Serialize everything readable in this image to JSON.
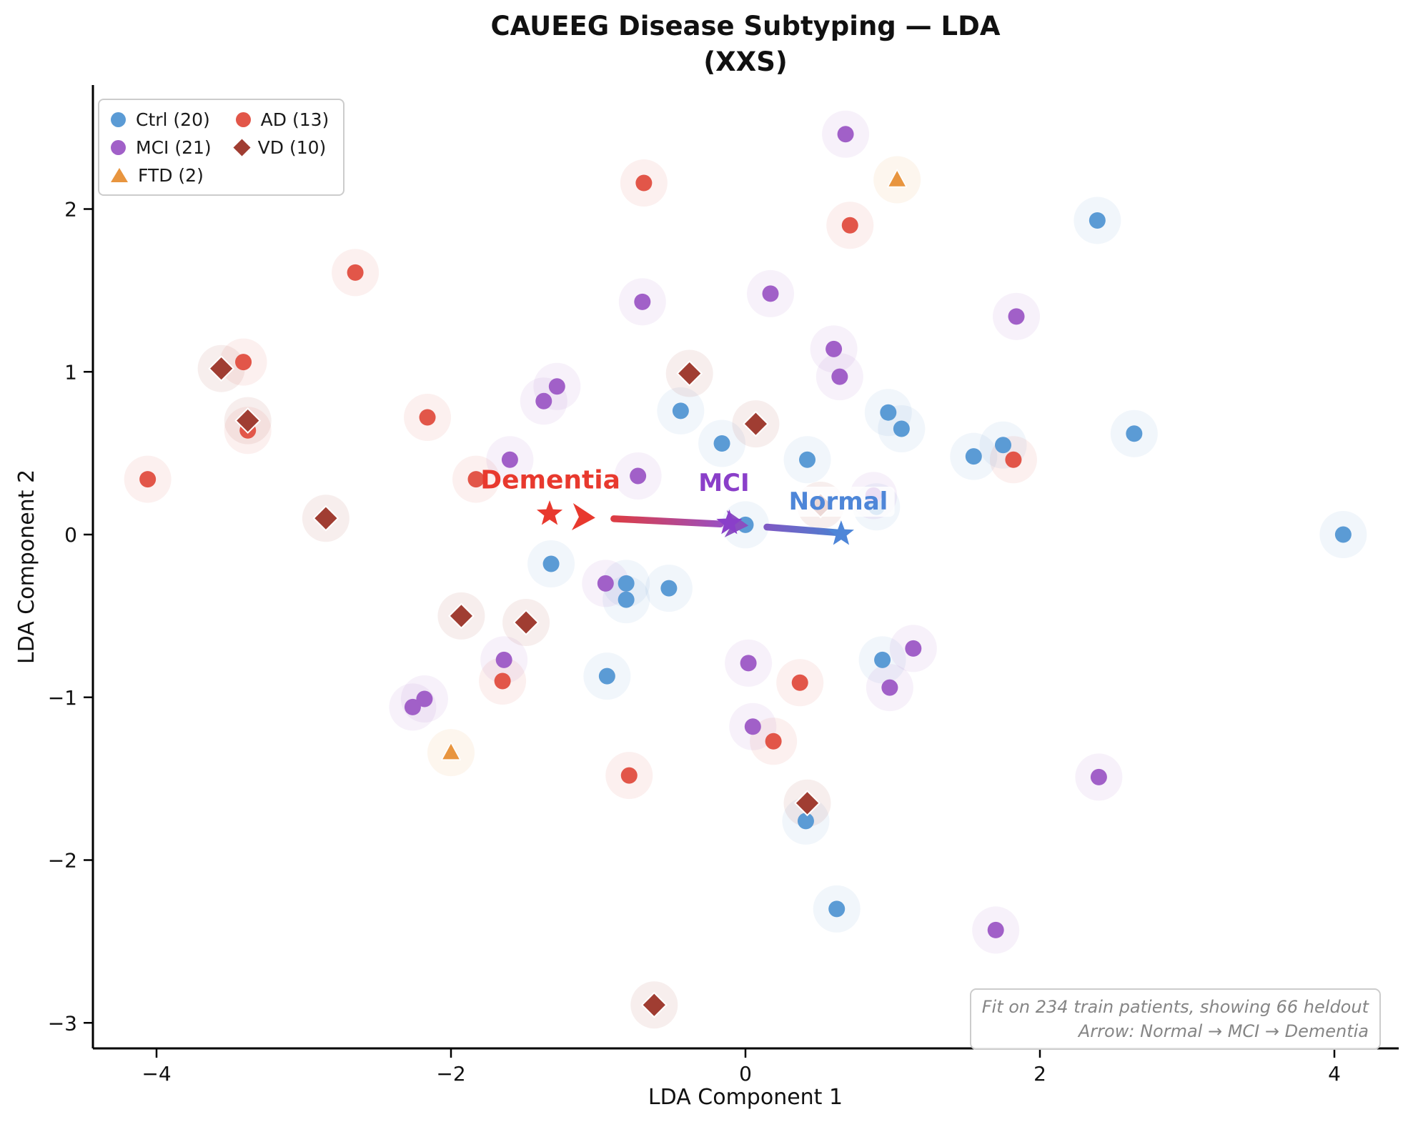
{
  "title": {
    "line1": "CAUEEG Disease Subtyping — LDA",
    "line2": "(XXS)"
  },
  "axes": {
    "xlabel": "LDA Component 1",
    "ylabel": "LDA Component 2",
    "x_ticks": [
      {
        "value": -4,
        "label": "−4"
      },
      {
        "value": -2,
        "label": "−2"
      },
      {
        "value": 0,
        "label": "0"
      },
      {
        "value": 2,
        "label": "2"
      },
      {
        "value": 4,
        "label": "4"
      }
    ],
    "y_ticks": [
      {
        "value": 2,
        "label": "2"
      },
      {
        "value": 1,
        "label": "1"
      },
      {
        "value": 0,
        "label": "0"
      },
      {
        "value": -1,
        "label": "−1"
      },
      {
        "value": -2,
        "label": "−2"
      },
      {
        "value": -3,
        "label": "−3"
      }
    ],
    "xlim": [
      -4.43,
      4.44
    ],
    "ylim": [
      -3.16,
      2.76
    ]
  },
  "legend": {
    "items": [
      {
        "label": "Ctrl (20)",
        "marker": "circle",
        "color": "#5b9bd5"
      },
      {
        "label": "MCI (21)",
        "marker": "circle",
        "color": "#a160c8"
      },
      {
        "label": "FTD (2)",
        "marker": "triangle",
        "color": "#e8953f"
      },
      {
        "label": "AD (13)",
        "marker": "circle",
        "color": "#e25649"
      },
      {
        "label": "VD (10)",
        "marker": "diamond",
        "color": "#a03d32"
      }
    ]
  },
  "chart_data": {
    "type": "scatter",
    "title": "CAUEEG Disease Subtyping — LDA (XXS)",
    "xlabel": "LDA Component 1",
    "ylabel": "LDA Component 2",
    "xlim": [
      -4.43,
      4.44
    ],
    "ylim": [
      -3.16,
      2.76
    ],
    "legend_position": "upper left",
    "series": [
      {
        "name": "Ctrl (20)",
        "marker": "circle",
        "color": "#5b9bd5",
        "points": [
          [
            2.39,
            1.93
          ],
          [
            -0.44,
            0.76
          ],
          [
            -0.16,
            0.56
          ],
          [
            0.97,
            0.75
          ],
          [
            1.06,
            0.65
          ],
          [
            1.55,
            0.48
          ],
          [
            1.75,
            0.55
          ],
          [
            2.64,
            0.62
          ],
          [
            0.42,
            0.46
          ],
          [
            0.0,
            0.06
          ],
          [
            4.06,
            0.0
          ],
          [
            -1.32,
            -0.18
          ],
          [
            -0.81,
            -0.3
          ],
          [
            -0.81,
            -0.4
          ],
          [
            -0.52,
            -0.33
          ],
          [
            -0.94,
            -0.87
          ],
          [
            0.93,
            -0.77
          ],
          [
            0.41,
            -1.76
          ],
          [
            0.62,
            -2.3
          ],
          [
            0.89,
            0.17
          ]
        ]
      },
      {
        "name": "MCI (21)",
        "marker": "circle",
        "color": "#a160c8",
        "points": [
          [
            0.68,
            2.46
          ],
          [
            -0.7,
            1.43
          ],
          [
            0.17,
            1.48
          ],
          [
            1.84,
            1.34
          ],
          [
            0.6,
            1.14
          ],
          [
            0.64,
            0.97
          ],
          [
            -1.28,
            0.91
          ],
          [
            -1.37,
            0.82
          ],
          [
            -1.6,
            0.46
          ],
          [
            -0.73,
            0.36
          ],
          [
            0.87,
            0.24
          ],
          [
            -0.95,
            -0.3
          ],
          [
            -1.64,
            -0.77
          ],
          [
            0.02,
            -0.79
          ],
          [
            1.14,
            -0.7
          ],
          [
            0.98,
            -0.94
          ],
          [
            -2.26,
            -1.06
          ],
          [
            -2.18,
            -1.01
          ],
          [
            0.05,
            -1.18
          ],
          [
            2.4,
            -1.49
          ],
          [
            1.7,
            -2.43
          ]
        ]
      },
      {
        "name": "FTD (2)",
        "marker": "triangle",
        "color": "#e8953f",
        "points": [
          [
            1.03,
            2.18
          ],
          [
            -2.0,
            -1.34
          ]
        ]
      },
      {
        "name": "AD (13)",
        "marker": "circle",
        "color": "#e25649",
        "points": [
          [
            -0.69,
            2.16
          ],
          [
            0.71,
            1.9
          ],
          [
            -2.65,
            1.61
          ],
          [
            -3.41,
            1.06
          ],
          [
            -3.38,
            0.64
          ],
          [
            -2.16,
            0.72
          ],
          [
            -4.06,
            0.34
          ],
          [
            -1.83,
            0.34
          ],
          [
            1.82,
            0.46
          ],
          [
            -1.65,
            -0.9
          ],
          [
            0.37,
            -0.91
          ],
          [
            0.19,
            -1.27
          ],
          [
            -0.79,
            -1.48
          ]
        ]
      },
      {
        "name": "VD (10)",
        "marker": "diamond",
        "color": "#a03d32",
        "points": [
          [
            -3.56,
            1.02
          ],
          [
            -3.38,
            0.7
          ],
          [
            -0.38,
            0.99
          ],
          [
            0.07,
            0.68
          ],
          [
            -2.85,
            0.1
          ],
          [
            -1.93,
            -0.5
          ],
          [
            -1.49,
            -0.54
          ],
          [
            0.51,
            0.18
          ],
          [
            0.42,
            -1.65
          ],
          [
            -0.62,
            -2.89
          ]
        ]
      }
    ],
    "centroids": [
      {
        "label": "Dementia",
        "x": -1.33,
        "y": 0.127,
        "color": "#e8392e",
        "label_x": -1.325,
        "label_y": 0.335,
        "label_size": 36,
        "boxed": false
      },
      {
        "label": "MCI",
        "x": -0.11,
        "y": 0.07,
        "color": "#8a3fc9",
        "label_x": -0.146,
        "label_y": 0.316,
        "label_size": 34,
        "boxed": false
      },
      {
        "label": "Normal",
        "x": 0.65,
        "y": 0.004,
        "color": "#4e86d8",
        "label_x": 0.631,
        "label_y": 0.202,
        "label_size": 34,
        "boxed": true
      }
    ],
    "arrows": [
      {
        "from_x": 0.62,
        "from_y": 0.012,
        "to_x": 0.02,
        "to_y": 0.055,
        "color_from": "#4e7fd0",
        "color_to": "#8a4fc0"
      },
      {
        "from_x": -0.17,
        "from_y": 0.065,
        "to_x": -1.02,
        "to_y": 0.103,
        "color_from": "#9b4fc0",
        "color_to": "#e8392e"
      }
    ]
  },
  "annotation": {
    "line1": "Fit on 234 train patients, showing 66 heldout",
    "line2": "Arrow: Normal → MCI → Dementia"
  }
}
